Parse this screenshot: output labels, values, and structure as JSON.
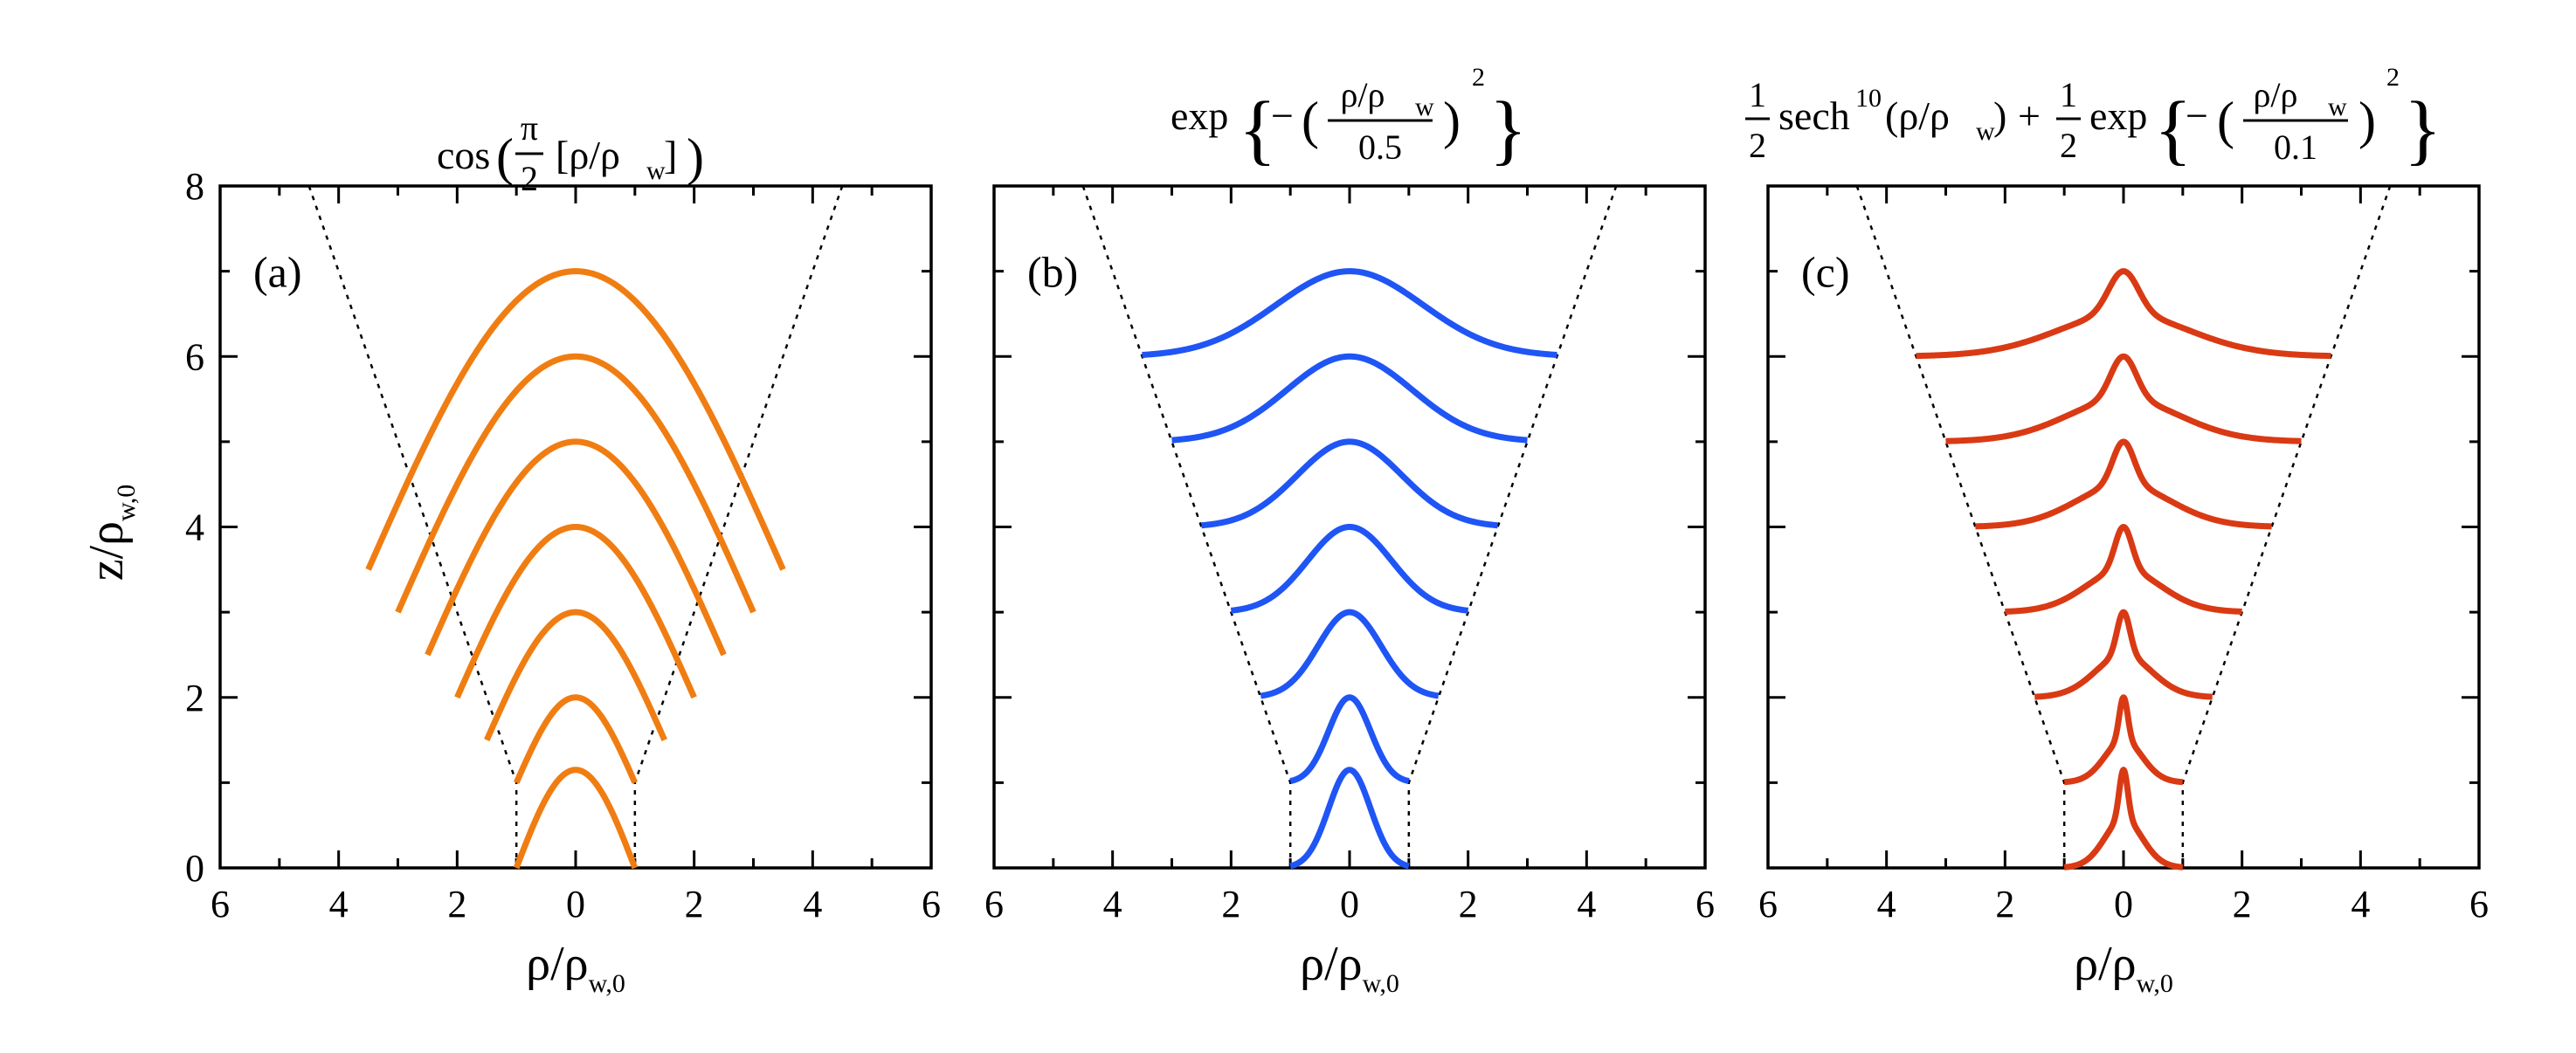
{
  "chart_data": [
    {
      "type": "line",
      "panel_label": "(a)",
      "profile": "cos",
      "title": {
        "func": "cos",
        "pi": "π",
        "two": "2",
        "arg": "[ρ/ρ",
        "arg_sub": "w",
        "arg_end": "]"
      },
      "color": "#f07d12",
      "xlim": [
        -6,
        6
      ],
      "ylim": [
        0,
        8
      ],
      "xticks": [
        -6,
        -4,
        -2,
        0,
        2,
        4,
        6
      ],
      "xtick_labels": [
        "6",
        "4",
        "2",
        "0",
        "2",
        "4",
        "6"
      ],
      "yticks": [
        0,
        2,
        4,
        6,
        8
      ],
      "ytick_labels": [
        "0",
        "2",
        "4",
        "6",
        "8"
      ],
      "xlabel": {
        "main": "ρ/ρ",
        "sub": "w,0"
      },
      "ylabel": {
        "main": "z/ρ",
        "sub": "w,0"
      },
      "boundary": {
        "rho_half_width_at_z0": 1,
        "z_start": 1,
        "rho_half_width_at_z8": 4.5,
        "style": "dotted"
      },
      "series": [
        {
          "z": 0,
          "rho_w": 1.0,
          "peak": 1.15
        },
        {
          "z": 1,
          "rho_w": 1.0,
          "peak": 2.0
        },
        {
          "z": 1.5,
          "rho_w": 1.5,
          "peak": 3.0
        },
        {
          "z": 2,
          "rho_w": 2.0,
          "peak": 4.0
        },
        {
          "z": 2.5,
          "rho_w": 2.5,
          "peak": 5.0
        },
        {
          "z": 3,
          "rho_w": 3.0,
          "peak": 6.0
        },
        {
          "z": 3.5,
          "rho_w": 3.5,
          "peak": 7.0
        }
      ]
    },
    {
      "type": "line",
      "panel_label": "(b)",
      "profile": "gauss",
      "title": {
        "func": "exp",
        "minus": "−",
        "num": "ρ/ρ",
        "num_sub": "w",
        "den": "0.5",
        "power": "2"
      },
      "color": "#1f55f5",
      "xlim": [
        -6,
        6
      ],
      "ylim": [
        0,
        8
      ],
      "xticks": [
        -6,
        -4,
        -2,
        0,
        2,
        4,
        6
      ],
      "xtick_labels": [
        "6",
        "4",
        "2",
        "0",
        "2",
        "4",
        "6"
      ],
      "yticks": [
        0,
        2,
        4,
        6,
        8
      ],
      "ytick_labels": [
        "",
        "",
        "",
        "",
        ""
      ],
      "xlabel": {
        "main": "ρ/ρ",
        "sub": "w,0"
      },
      "boundary": {
        "rho_half_width_at_z0": 1,
        "z_start": 1,
        "rho_half_width_at_z8": 4.5,
        "style": "dotted"
      },
      "series": [
        {
          "z": 0,
          "rho_w": 1.0,
          "peak": 1.15
        },
        {
          "z": 1,
          "rho_w": 1.0,
          "peak": 2.0
        },
        {
          "z": 2,
          "rho_w": 1.5,
          "peak": 3.0
        },
        {
          "z": 3,
          "rho_w": 2.0,
          "peak": 4.0
        },
        {
          "z": 4,
          "rho_w": 2.5,
          "peak": 5.0
        },
        {
          "z": 5,
          "rho_w": 3.0,
          "peak": 6.0
        },
        {
          "z": 6,
          "rho_w": 3.5,
          "peak": 7.0
        }
      ]
    },
    {
      "type": "line",
      "panel_label": "(c)",
      "profile": "sech_exp",
      "title": {
        "half": "1",
        "two": "2",
        "sech": "sech",
        "sech_pow": "10",
        "sech_arg": "(ρ/ρ",
        "sech_arg_sub": "w",
        "sech_arg_end": ")",
        "plus": "+",
        "func": "exp",
        "minus": "−",
        "num": "ρ/ρ",
        "num_sub": "w",
        "den": "0.1",
        "power": "2"
      },
      "color": "#d93a14",
      "xlim": [
        -6,
        6
      ],
      "ylim": [
        0,
        8
      ],
      "xticks": [
        -6,
        -4,
        -2,
        0,
        2,
        4,
        6
      ],
      "xtick_labels": [
        "6",
        "4",
        "2",
        "0",
        "2",
        "4",
        "6"
      ],
      "yticks": [
        0,
        2,
        4,
        6,
        8
      ],
      "ytick_labels": [
        "",
        "",
        "",
        "",
        ""
      ],
      "xlabel": {
        "main": "ρ/ρ",
        "sub": "w,0"
      },
      "boundary": {
        "rho_half_width_at_z0": 1,
        "z_start": 1,
        "rho_half_width_at_z8": 4.5,
        "style": "dotted"
      },
      "series": [
        {
          "z": 0,
          "rho_w": 1.0,
          "peak": 1.15
        },
        {
          "z": 1,
          "rho_w": 1.0,
          "peak": 2.0
        },
        {
          "z": 2,
          "rho_w": 1.5,
          "peak": 3.0
        },
        {
          "z": 3,
          "rho_w": 2.0,
          "peak": 4.0
        },
        {
          "z": 4,
          "rho_w": 2.5,
          "peak": 5.0
        },
        {
          "z": 5,
          "rho_w": 3.0,
          "peak": 6.0
        },
        {
          "z": 6,
          "rho_w": 3.5,
          "peak": 7.0
        }
      ]
    }
  ]
}
